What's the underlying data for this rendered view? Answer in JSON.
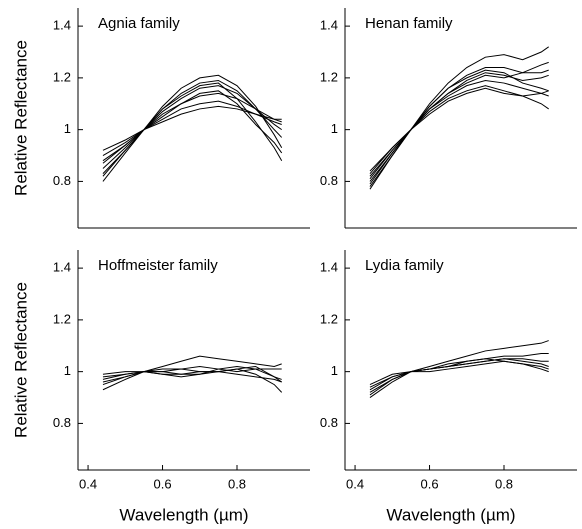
{
  "chart_data": [
    {
      "type": "line",
      "title": "Agnia family",
      "ylabel": "Relative Reflectance",
      "color": "#000000",
      "x": [
        0.44,
        0.5,
        0.55,
        0.6,
        0.65,
        0.7,
        0.75,
        0.8,
        0.85,
        0.9,
        0.92
      ],
      "xlim": [
        0.373,
        0.996
      ],
      "ylim": [
        0.62,
        1.47
      ],
      "yticks": [
        0.8,
        1,
        1.2,
        1.4
      ],
      "series": [
        {
          "values": [
            0.8,
            0.91,
            1,
            1.09,
            1.16,
            1.2,
            1.21,
            1.17,
            1.09,
            0.98,
            0.93
          ]
        },
        {
          "values": [
            0.82,
            0.92,
            1,
            1.08,
            1.14,
            1.18,
            1.19,
            1.15,
            1.08,
            1.0,
            0.97
          ]
        },
        {
          "values": [
            0.85,
            0.93,
            1,
            1.07,
            1.12,
            1.16,
            1.17,
            1.14,
            1.08,
            1.02,
            1.0
          ]
        },
        {
          "values": [
            0.87,
            0.94,
            1,
            1.06,
            1.1,
            1.13,
            1.14,
            1.12,
            1.08,
            1.04,
            1.03
          ]
        },
        {
          "values": [
            0.9,
            0.95,
            1,
            1.04,
            1.08,
            1.1,
            1.11,
            1.09,
            1.06,
            1.03,
            1.02
          ]
        },
        {
          "values": [
            0.92,
            0.96,
            1,
            1.03,
            1.06,
            1.08,
            1.09,
            1.08,
            1.06,
            1.04,
            1.04
          ]
        },
        {
          "values": [
            0.83,
            0.92,
            1,
            1.08,
            1.13,
            1.17,
            1.18,
            1.12,
            1.03,
            0.93,
            0.88
          ]
        },
        {
          "values": [
            0.88,
            0.94,
            1,
            1.05,
            1.1,
            1.14,
            1.15,
            1.1,
            1.02,
            0.95,
            0.91
          ]
        }
      ]
    },
    {
      "type": "line",
      "title": "Henan family",
      "color": "#000000",
      "x": [
        0.44,
        0.5,
        0.55,
        0.6,
        0.65,
        0.7,
        0.75,
        0.8,
        0.85,
        0.9,
        0.92
      ],
      "xlim": [
        0.373,
        0.996
      ],
      "ylim": [
        0.62,
        1.47
      ],
      "yticks": [
        0.8,
        1,
        1.2,
        1.4
      ],
      "series": [
        {
          "values": [
            0.77,
            0.9,
            1,
            1.1,
            1.18,
            1.24,
            1.28,
            1.29,
            1.27,
            1.3,
            1.32
          ]
        },
        {
          "values": [
            0.79,
            0.91,
            1,
            1.09,
            1.16,
            1.21,
            1.24,
            1.24,
            1.22,
            1.22,
            1.23
          ]
        },
        {
          "values": [
            0.8,
            0.91,
            1,
            1.08,
            1.14,
            1.19,
            1.22,
            1.21,
            1.19,
            1.2,
            1.21
          ]
        },
        {
          "values": [
            0.82,
            0.92,
            1,
            1.08,
            1.13,
            1.17,
            1.19,
            1.18,
            1.16,
            1.14,
            1.13
          ]
        },
        {
          "values": [
            0.83,
            0.93,
            1,
            1.07,
            1.12,
            1.15,
            1.17,
            1.15,
            1.13,
            1.1,
            1.08
          ]
        },
        {
          "values": [
            0.78,
            0.9,
            1,
            1.09,
            1.16,
            1.2,
            1.23,
            1.22,
            1.18,
            1.16,
            1.15
          ]
        },
        {
          "values": [
            0.81,
            0.92,
            1,
            1.08,
            1.14,
            1.18,
            1.21,
            1.2,
            1.22,
            1.25,
            1.26
          ]
        },
        {
          "values": [
            0.84,
            0.93,
            1,
            1.06,
            1.11,
            1.14,
            1.16,
            1.14,
            1.13,
            1.14,
            1.15
          ]
        }
      ]
    },
    {
      "type": "line",
      "title": "Hoffmeister family",
      "ylabel": "Relative Reflectance",
      "xlabel": "Wavelength (µm)",
      "color": "#000000",
      "x": [
        0.44,
        0.5,
        0.55,
        0.6,
        0.65,
        0.7,
        0.75,
        0.8,
        0.85,
        0.9,
        0.92
      ],
      "xlim": [
        0.373,
        0.996
      ],
      "ylim": [
        0.62,
        1.47
      ],
      "yticks": [
        0.8,
        1,
        1.2,
        1.4
      ],
      "xticks": [
        0.4,
        0.6,
        0.8
      ],
      "series": [
        {
          "values": [
            0.96,
            0.98,
            1,
            1.02,
            1.04,
            1.06,
            1.05,
            1.04,
            1.03,
            1.02,
            1.03
          ]
        },
        {
          "values": [
            0.97,
            0.99,
            1,
            1.01,
            1.01,
            1.02,
            1.01,
            1.0,
            1.01,
            1.01,
            1.01
          ]
        },
        {
          "values": [
            0.93,
            0.97,
            1,
            1.0,
            0.99,
            0.99,
            1.0,
            1.01,
            1.02,
            0.98,
            0.96
          ]
        },
        {
          "values": [
            0.98,
            0.99,
            1,
            1.0,
            1.01,
            1.0,
            1.0,
            1.01,
            0.99,
            0.95,
            0.92
          ]
        },
        {
          "values": [
            0.95,
            0.98,
            1,
            0.99,
            0.98,
            0.99,
            1.01,
            1.02,
            1.01,
            0.98,
            0.97
          ]
        },
        {
          "values": [
            0.99,
            1.0,
            1,
            0.99,
            0.99,
            1.0,
            1.0,
            0.99,
            0.98,
            0.97,
            0.96
          ]
        }
      ]
    },
    {
      "type": "line",
      "title": "Lydia family",
      "xlabel": "Wavelength (µm)",
      "color": "#000000",
      "x": [
        0.44,
        0.5,
        0.55,
        0.6,
        0.65,
        0.7,
        0.75,
        0.8,
        0.85,
        0.9,
        0.92
      ],
      "xlim": [
        0.373,
        0.996
      ],
      "ylim": [
        0.62,
        1.47
      ],
      "yticks": [
        0.8,
        1,
        1.2,
        1.4
      ],
      "xticks": [
        0.4,
        0.6,
        0.8
      ],
      "series": [
        {
          "values": [
            0.9,
            0.96,
            1,
            1.02,
            1.04,
            1.06,
            1.08,
            1.09,
            1.1,
            1.11,
            1.12
          ]
        },
        {
          "values": [
            0.92,
            0.97,
            1,
            1.01,
            1.02,
            1.04,
            1.05,
            1.06,
            1.06,
            1.07,
            1.07
          ]
        },
        {
          "values": [
            0.93,
            0.98,
            1,
            1.01,
            1.02,
            1.03,
            1.04,
            1.05,
            1.04,
            1.03,
            1.02
          ]
        },
        {
          "values": [
            0.94,
            0.98,
            1,
            1.0,
            1.01,
            1.02,
            1.03,
            1.04,
            1.03,
            1.01,
            1.0
          ]
        },
        {
          "values": [
            0.95,
            0.99,
            1,
            1.01,
            1.02,
            1.03,
            1.04,
            1.05,
            1.05,
            1.04,
            1.04
          ]
        },
        {
          "values": [
            0.91,
            0.97,
            1,
            1.01,
            1.03,
            1.04,
            1.05,
            1.04,
            1.03,
            1.02,
            1.01
          ]
        }
      ]
    }
  ]
}
